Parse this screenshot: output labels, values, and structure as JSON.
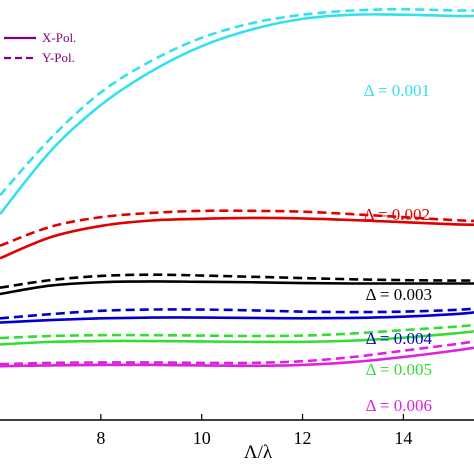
{
  "chart_data": {
    "type": "line",
    "xlabel": "Λ/λ",
    "ylabel": "",
    "xlim": [
      6.0,
      15.4
    ],
    "ylim": [
      0.0,
      1.0
    ],
    "x_ticks": [
      8,
      10,
      12,
      14
    ],
    "x_tick_labels": [
      "8",
      "10",
      "12",
      "14"
    ],
    "grid": false,
    "legend": {
      "placement": "top-left",
      "entries": [
        {
          "label": "X-Pol.",
          "style": "solid",
          "color": "#800080"
        },
        {
          "label": "Y-Pol.",
          "style": "dashed",
          "color": "#800080"
        }
      ]
    },
    "groups": [
      {
        "label": "Δ = 0.001",
        "color": "#33E0F0",
        "x": [
          6.0,
          7.0,
          8.0,
          9.0,
          10.0,
          11.0,
          12.0,
          13.0,
          14.0,
          15.0,
          15.4
        ],
        "series": [
          {
            "name": "X-Pol.",
            "style": "solid",
            "values": [
              0.49,
              0.64,
              0.75,
              0.83,
              0.89,
              0.93,
              0.955,
              0.965,
              0.965,
              0.962,
              0.962
            ]
          },
          {
            "name": "Y-Pol.",
            "style": "dashed",
            "values": [
              0.535,
              0.67,
              0.78,
              0.855,
              0.91,
              0.945,
              0.965,
              0.975,
              0.978,
              0.975,
              0.975
            ]
          }
        ]
      },
      {
        "label": "Δ = 0.002",
        "color": "#E00000",
        "x": [
          6.0,
          7.0,
          8.0,
          9.0,
          10.0,
          11.0,
          12.0,
          13.0,
          14.0,
          15.0,
          15.4
        ],
        "series": [
          {
            "name": "X-Pol.",
            "style": "solid",
            "values": [
              0.385,
              0.435,
              0.462,
              0.475,
              0.479,
              0.481,
              0.48,
              0.476,
              0.471,
              0.466,
              0.465
            ]
          },
          {
            "name": "Y-Pol.",
            "style": "dashed",
            "values": [
              0.415,
              0.46,
              0.483,
              0.493,
              0.498,
              0.498,
              0.496,
              0.49,
              0.483,
              0.476,
              0.474
            ]
          }
        ]
      },
      {
        "label": "Δ = 0.003",
        "color": "#000000",
        "x": [
          6.0,
          7.0,
          8.0,
          9.0,
          10.0,
          11.0,
          12.0,
          13.0,
          14.0,
          15.0,
          15.4
        ],
        "series": [
          {
            "name": "X-Pol.",
            "style": "solid",
            "values": [
              0.3,
              0.32,
              0.328,
              0.33,
              0.329,
              0.328,
              0.326,
              0.325,
              0.325,
              0.325,
              0.325
            ]
          },
          {
            "name": "Y-Pol.",
            "style": "dashed",
            "values": [
              0.315,
              0.333,
              0.343,
              0.346,
              0.344,
              0.341,
              0.338,
              0.335,
              0.333,
              0.332,
              0.332
            ]
          }
        ]
      },
      {
        "label": "Δ = 0.004",
        "color": "#0000D0",
        "x": [
          6.0,
          7.0,
          8.0,
          9.0,
          10.0,
          11.0,
          12.0,
          13.0,
          14.0,
          15.0,
          15.4
        ],
        "series": [
          {
            "name": "X-Pol.",
            "style": "solid",
            "values": [
              0.232,
              0.238,
              0.242,
              0.244,
              0.244,
              0.243,
              0.242,
              0.243,
              0.246,
              0.252,
              0.256
            ]
          },
          {
            "name": "Y-Pol.",
            "style": "dashed",
            "values": [
              0.242,
              0.252,
              0.26,
              0.263,
              0.263,
              0.261,
              0.258,
              0.257,
              0.258,
              0.262,
              0.265
            ]
          }
        ]
      },
      {
        "label": "Δ = 0.005",
        "color": "#33DD33",
        "x": [
          6.0,
          7.0,
          8.0,
          9.0,
          10.0,
          11.0,
          12.0,
          13.0,
          14.0,
          15.0,
          15.4
        ],
        "series": [
          {
            "name": "X-Pol.",
            "style": "solid",
            "values": [
              0.18,
              0.186,
              0.188,
              0.188,
              0.187,
              0.186,
              0.186,
              0.189,
              0.196,
              0.206,
              0.211
            ]
          },
          {
            "name": "Y-Pol.",
            "style": "dashed",
            "values": [
              0.195,
              0.2,
              0.202,
              0.202,
              0.201,
              0.2,
              0.201,
              0.206,
              0.214,
              0.222,
              0.226
            ]
          }
        ]
      },
      {
        "label": "Δ = 0.006",
        "color": "#E020E0",
        "x": [
          6.0,
          7.0,
          8.0,
          9.0,
          10.0,
          11.0,
          12.0,
          13.0,
          14.0,
          15.0,
          15.4
        ],
        "series": [
          {
            "name": "X-Pol.",
            "style": "solid",
            "values": [
              0.128,
              0.13,
              0.131,
              0.131,
              0.13,
              0.129,
              0.131,
              0.138,
              0.15,
              0.165,
              0.172
            ]
          },
          {
            "name": "Y-Pol.",
            "style": "dashed",
            "values": [
              0.133,
              0.136,
              0.137,
              0.137,
              0.136,
              0.136,
              0.14,
              0.15,
              0.165,
              0.18,
              0.187
            ]
          }
        ]
      }
    ]
  }
}
